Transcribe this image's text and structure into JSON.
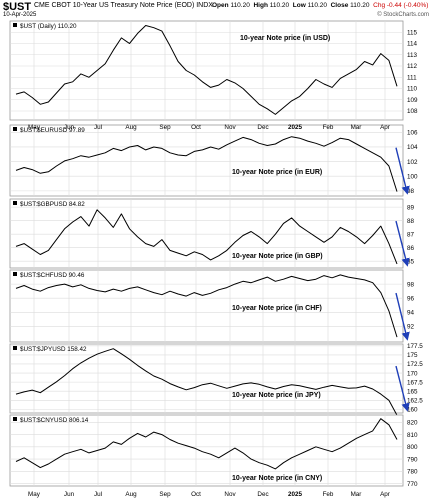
{
  "header": {
    "symbol": "$UST",
    "description": "CME CBOT 10-Year US Treasury Note Price (EOD)",
    "exchange": "INDX",
    "date": "10-Apr-2025",
    "open_label": "Open",
    "open": "110.20",
    "high_label": "High",
    "high": "110.20",
    "low_label": "Low",
    "low": "110.20",
    "close_label": "Close",
    "close": "110.20",
    "change": "Chg -0.44 (-0.40%)",
    "watermark": "© StockCharts.com"
  },
  "colors": {
    "line": "#000000",
    "arrow": "#1f3fb8",
    "grid": "#dcdcdc",
    "frame": "#9a9a9a"
  },
  "chart_data": [
    {
      "type": "line",
      "legend_text": "$UST (Daily) 110.20",
      "annotation": "10-year Note price (in USD)",
      "ylim": [
        107.2,
        116
      ],
      "yticks": [
        108,
        109,
        110,
        111,
        112,
        113,
        114,
        115
      ],
      "series": [
        {
          "values": [
            109.5,
            109.7,
            109.2,
            108.6,
            108.8,
            109.6,
            110.4,
            110.6,
            111.3,
            111.0,
            111.6,
            112.2,
            113.4,
            114.5,
            114.0,
            114.9,
            115.6,
            115.4,
            115.1,
            113.8,
            112.4,
            111.6,
            111.2,
            110.6,
            110.1,
            110.3,
            110.8,
            110.5,
            110.0,
            109.3,
            108.6,
            108.2,
            107.7,
            108.3,
            108.9,
            109.3,
            110.0,
            110.8,
            110.4,
            110.1,
            110.9,
            111.3,
            111.7,
            112.4,
            112.1,
            113.1,
            112.5,
            110.2
          ]
        }
      ],
      "arrow": false
    },
    {
      "type": "line",
      "legend_text": "$UST:$EURUSD 97.89",
      "annotation": "10-year Note price (in EUR)",
      "ylim": [
        97.3,
        107
      ],
      "yticks": [
        98,
        100,
        102,
        104,
        106
      ],
      "series": [
        {
          "values": [
            100.8,
            101.2,
            100.9,
            100.4,
            100.6,
            101.4,
            102.1,
            102.4,
            102.8,
            102.6,
            102.9,
            103.2,
            103.8,
            103.5,
            104.0,
            104.2,
            103.6,
            104.0,
            103.8,
            103.2,
            102.9,
            102.8,
            103.4,
            103.6,
            104.0,
            103.7,
            104.3,
            104.8,
            105.3,
            105.0,
            104.5,
            104.2,
            104.4,
            105.0,
            105.4,
            105.2,
            104.8,
            104.5,
            104.1,
            104.6,
            105.2,
            105.0,
            104.4,
            103.8,
            103.2,
            102.6,
            101.4,
            97.9
          ]
        }
      ],
      "arrow": true
    },
    {
      "type": "line",
      "legend_text": "$UST:$GBPUSD 84.82",
      "annotation": "10-year Note price (in GBP)",
      "ylim": [
        84.5,
        89.6
      ],
      "yticks": [
        85,
        86,
        87,
        88,
        89
      ],
      "series": [
        {
          "values": [
            86.1,
            86.3,
            85.9,
            85.5,
            85.8,
            86.6,
            87.4,
            87.9,
            88.3,
            87.6,
            88.8,
            88.2,
            87.5,
            88.5,
            87.4,
            86.8,
            86.3,
            86.1,
            86.6,
            85.8,
            85.6,
            85.4,
            85.7,
            85.5,
            85.1,
            85.4,
            85.8,
            86.4,
            86.9,
            87.2,
            86.8,
            86.3,
            87.0,
            87.8,
            88.2,
            87.6,
            87.2,
            86.8,
            86.4,
            86.8,
            87.5,
            87.2,
            86.8,
            86.3,
            86.9,
            87.6,
            86.3,
            84.8
          ]
        }
      ],
      "arrow": true
    },
    {
      "type": "line",
      "legend_text": "$UST:$CHFUSD 90.46",
      "annotation": "10-year Note price (in CHF)",
      "ylim": [
        89.8,
        100
      ],
      "yticks": [
        92,
        94,
        96,
        98
      ],
      "series": [
        {
          "values": [
            97.4,
            97.8,
            97.3,
            97.0,
            97.5,
            97.8,
            98.0,
            97.6,
            97.9,
            97.4,
            97.1,
            96.9,
            97.3,
            97.0,
            97.4,
            97.6,
            97.2,
            96.8,
            96.5,
            97.0,
            96.6,
            96.3,
            96.8,
            96.4,
            96.7,
            97.2,
            97.5,
            98.0,
            98.4,
            98.2,
            98.6,
            99.0,
            98.4,
            98.7,
            99.1,
            98.8,
            98.5,
            98.7,
            99.2,
            98.9,
            99.3,
            99.0,
            98.8,
            98.6,
            98.2,
            96.8,
            94.2,
            90.5
          ]
        }
      ],
      "arrow": true
    },
    {
      "type": "line",
      "legend_text": "$UST:$JPYUSD 158.42",
      "annotation": "10-year Note price (in JPY)",
      "ylim": [
        159,
        178
      ],
      "yticks": [
        160,
        162.5,
        165,
        167.5,
        170,
        172.5,
        175,
        177.5
      ],
      "series": [
        {
          "values": [
            164.2,
            164.8,
            165.3,
            164.6,
            166.1,
            167.6,
            169.3,
            171.2,
            172.8,
            174.1,
            175.2,
            176.0,
            176.7,
            175.3,
            173.8,
            172.1,
            170.6,
            169.2,
            168.3,
            167.1,
            166.2,
            165.4,
            166.0,
            166.8,
            167.2,
            166.5,
            165.8,
            166.4,
            167.0,
            167.3,
            166.9,
            166.2,
            165.6,
            166.3,
            166.8,
            166.5,
            166.0,
            165.5,
            166.1,
            166.6,
            166.2,
            165.8,
            165.9,
            166.4,
            165.6,
            164.2,
            162.5,
            158.4
          ]
        }
      ],
      "arrow": true
    },
    {
      "type": "line",
      "legend_text": "$UST:$CNYUSD 806.14",
      "annotation": "10-year Note price (in CNY)",
      "ylim": [
        768,
        826
      ],
      "yticks": [
        770,
        780,
        790,
        800,
        810,
        820
      ],
      "series": [
        {
          "values": [
            788,
            791,
            787,
            783,
            786,
            790,
            794,
            796,
            798,
            795,
            797,
            799,
            804,
            802,
            807,
            811,
            808,
            812,
            810,
            806,
            803,
            801,
            799,
            796,
            794,
            791,
            795,
            799,
            795,
            790,
            787,
            785,
            782,
            787,
            791,
            794,
            797,
            800,
            798,
            796,
            799,
            803,
            807,
            810,
            813,
            823,
            818,
            806
          ]
        }
      ],
      "arrow": false
    }
  ],
  "x_axis": {
    "labels": [
      "May",
      "Jun",
      "Jul",
      "Aug",
      "Sep",
      "Oct",
      "Nov",
      "Dec",
      "2025",
      "Feb",
      "Mar",
      "Apr"
    ],
    "bold_label": "2025"
  }
}
